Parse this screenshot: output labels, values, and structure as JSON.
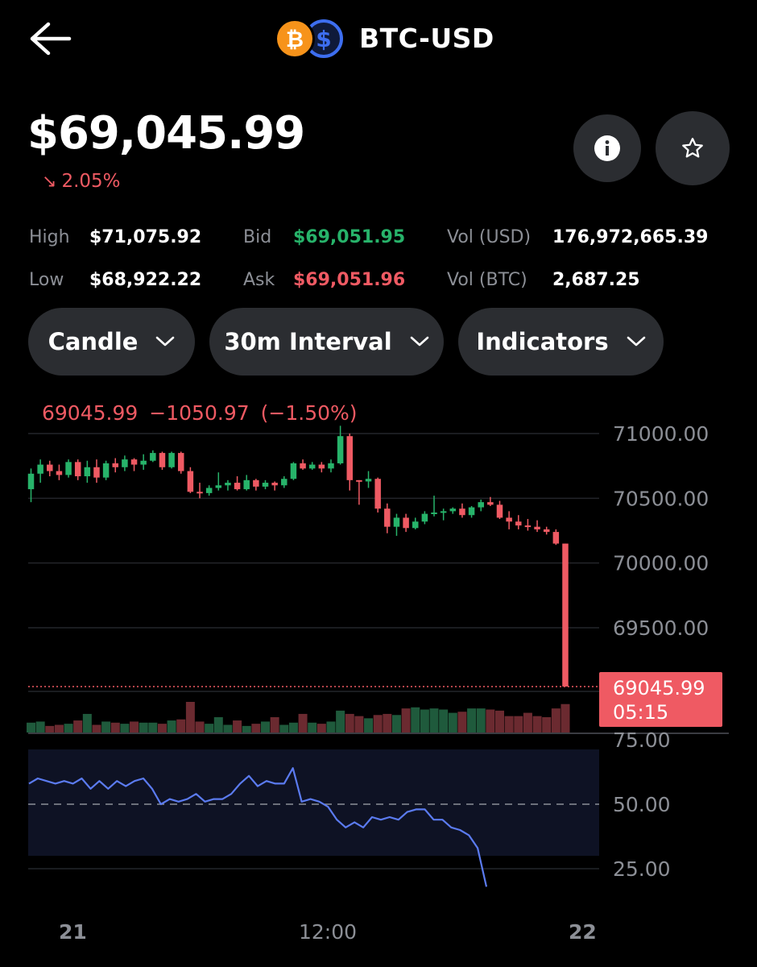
{
  "header": {
    "title": "BTC-USD",
    "back_icon": "arrow-left-icon",
    "base_icon": "bitcoin-icon",
    "quote_icon": "dollar-icon",
    "base_color": "#f7931a",
    "quote_color": "#3d6ef0"
  },
  "price": {
    "value": "$69,045.99",
    "change": "2.05%",
    "direction": "down"
  },
  "buttons": {
    "info_icon": "info-icon",
    "star_icon": "star-icon"
  },
  "stats": {
    "high_label": "High",
    "high_value": "$71,075.92",
    "low_label": "Low",
    "low_value": "$68,922.22",
    "bid_label": "Bid",
    "bid_value": "$69,051.95",
    "ask_label": "Ask",
    "ask_value": "$69,051.96",
    "vol_usd_label": "Vol (USD)",
    "vol_usd_value": "176,972,665.39",
    "vol_btc_label": "Vol (BTC)",
    "vol_btc_value": "2,687.25"
  },
  "controls": {
    "chart_type": "Candle",
    "interval": "30m Interval",
    "indicators": "Indicators"
  },
  "colors": {
    "up": "#27b36a",
    "down": "#ef5a63",
    "rsi_line": "#5b7bf0"
  },
  "chart_data": {
    "type": "candlestick",
    "ohlc_readout": {
      "close": "69045.99",
      "change": "−1050.97",
      "change_pct": "(−1.50%)"
    },
    "y_ticks": [
      "71000.00",
      "70500.00",
      "70000.00",
      "69500.00"
    ],
    "ylim": [
      69000,
      71200
    ],
    "current_price_label": "69045.99",
    "countdown_label": "05:15",
    "x_ticks": [
      "21",
      "12:00",
      "22"
    ],
    "candles": [
      [
        70570,
        70730,
        70470,
        70690
      ],
      [
        70690,
        70800,
        70620,
        70760
      ],
      [
        70760,
        70790,
        70670,
        70710
      ],
      [
        70710,
        70760,
        70640,
        70680
      ],
      [
        70680,
        70800,
        70660,
        70780
      ],
      [
        70780,
        70800,
        70640,
        70670
      ],
      [
        70670,
        70790,
        70620,
        70740
      ],
      [
        70740,
        70800,
        70620,
        70660
      ],
      [
        70660,
        70790,
        70640,
        70770
      ],
      [
        70770,
        70810,
        70700,
        70740
      ],
      [
        70740,
        70830,
        70710,
        70800
      ],
      [
        70800,
        70810,
        70710,
        70760
      ],
      [
        70760,
        70840,
        70720,
        70790
      ],
      [
        70790,
        70870,
        70780,
        70850
      ],
      [
        70850,
        70860,
        70720,
        70740
      ],
      [
        70740,
        70860,
        70730,
        70850
      ],
      [
        70850,
        70860,
        70690,
        70710
      ],
      [
        70710,
        70740,
        70540,
        70550
      ],
      [
        70550,
        70620,
        70500,
        70540
      ],
      [
        70540,
        70600,
        70520,
        70580
      ],
      [
        70580,
        70700,
        70560,
        70600
      ],
      [
        70600,
        70640,
        70560,
        70620
      ],
      [
        70620,
        70670,
        70560,
        70570
      ],
      [
        70570,
        70680,
        70560,
        70640
      ],
      [
        70640,
        70650,
        70560,
        70590
      ],
      [
        70590,
        70640,
        70570,
        70620
      ],
      [
        70620,
        70630,
        70560,
        70600
      ],
      [
        70600,
        70670,
        70580,
        70650
      ],
      [
        70650,
        70780,
        70640,
        70770
      ],
      [
        70770,
        70800,
        70720,
        70730
      ],
      [
        70730,
        70780,
        70720,
        70760
      ],
      [
        70760,
        70780,
        70700,
        70730
      ],
      [
        70730,
        70800,
        70700,
        70770
      ],
      [
        70770,
        71060,
        70760,
        70980
      ],
      [
        70980,
        71000,
        70560,
        70640
      ],
      [
        70640,
        70640,
        70450,
        70630
      ],
      [
        70630,
        70710,
        70580,
        70650
      ],
      [
        70650,
        70660,
        70390,
        70420
      ],
      [
        70420,
        70460,
        70230,
        70280
      ],
      [
        70280,
        70380,
        70210,
        70350
      ],
      [
        70350,
        70380,
        70240,
        70270
      ],
      [
        70270,
        70350,
        70260,
        70320
      ],
      [
        70320,
        70400,
        70300,
        70380
      ],
      [
        70380,
        70520,
        70360,
        70390
      ],
      [
        70390,
        70420,
        70330,
        70400
      ],
      [
        70400,
        70430,
        70380,
        70420
      ],
      [
        70420,
        70460,
        70350,
        70370
      ],
      [
        70370,
        70440,
        70350,
        70430
      ],
      [
        70430,
        70490,
        70400,
        70470
      ],
      [
        70470,
        70510,
        70440,
        70450
      ],
      [
        70450,
        70480,
        70340,
        70350
      ],
      [
        70350,
        70400,
        70260,
        70320
      ],
      [
        70320,
        70370,
        70260,
        70290
      ],
      [
        70290,
        70340,
        70250,
        70280
      ],
      [
        70280,
        70330,
        70240,
        70260
      ],
      [
        70260,
        70280,
        70220,
        70240
      ],
      [
        70240,
        70260,
        70140,
        70150
      ],
      [
        70150,
        70150,
        69050,
        69046
      ]
    ],
    "volumes": [
      9,
      10,
      6,
      7,
      8,
      11,
      17,
      7,
      10,
      9,
      8,
      10,
      9,
      9,
      8,
      11,
      12,
      28,
      10,
      8,
      14,
      7,
      11,
      6,
      8,
      10,
      14,
      7,
      9,
      17,
      9,
      8,
      10,
      20,
      17,
      15,
      13,
      16,
      17,
      16,
      22,
      23,
      21,
      22,
      21,
      18,
      19,
      22,
      22,
      21,
      20,
      15,
      15,
      18,
      15,
      14,
      22,
      26
    ],
    "rsi": {
      "label_ticks": [
        "75.00",
        "50.00",
        "25.00"
      ],
      "ylim": [
        15,
        82
      ],
      "values": [
        58,
        60,
        59,
        58,
        59,
        58,
        60,
        56,
        59,
        56,
        59,
        57,
        59,
        60,
        56,
        50,
        52,
        51,
        52,
        54,
        51,
        52,
        52,
        54,
        58,
        61,
        57,
        59,
        58,
        58,
        64,
        51,
        52,
        51,
        49,
        44,
        41,
        43,
        41,
        45,
        44,
        45,
        44,
        47,
        48,
        48,
        44,
        44,
        41,
        40,
        38,
        33,
        18
      ]
    }
  }
}
